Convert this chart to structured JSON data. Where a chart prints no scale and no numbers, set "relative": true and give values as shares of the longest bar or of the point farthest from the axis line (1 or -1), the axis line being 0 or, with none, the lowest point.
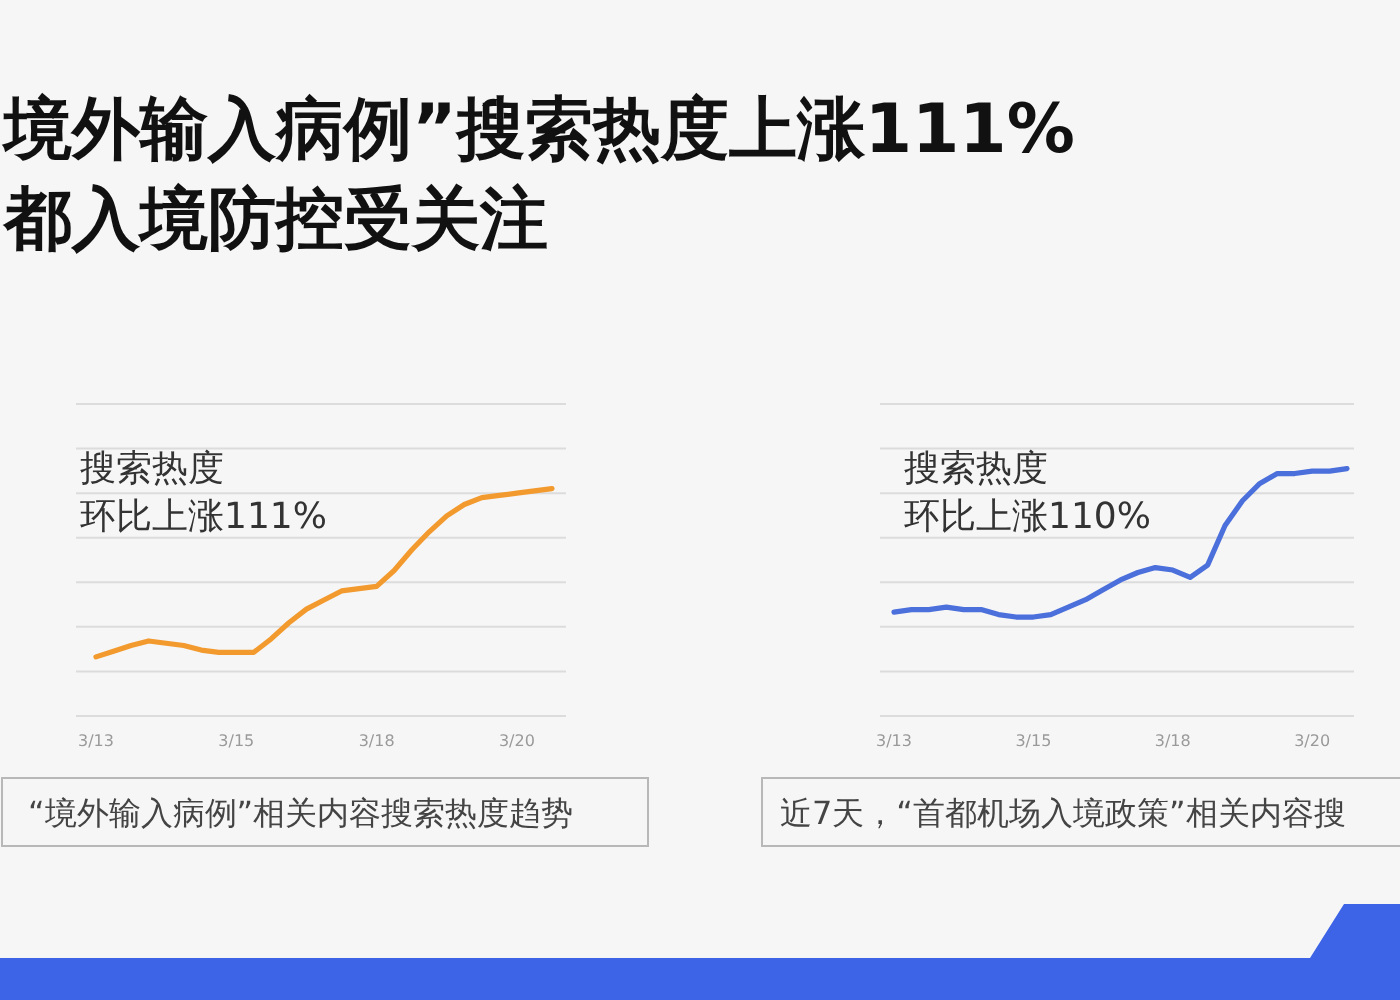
{
  "chart_data": [
    {
      "type": "line",
      "title": "境外输入病例”搜索热度上涨111%",
      "subtitle": "都入境防控受关注",
      "relative": true,
      "grid": "y",
      "categories": [
        "3/13",
        null,
        null,
        null,
        null,
        null,
        null,
        null,
        "3/15",
        null,
        null,
        null,
        null,
        null,
        null,
        null,
        "3/18",
        null,
        null,
        null,
        null,
        null,
        null,
        null,
        "3/20",
        null,
        null
      ],
      "series": [
        {
          "color": "#f39a2e",
          "values": [
            0.26,
            0.285,
            0.31,
            0.33,
            0.32,
            0.31,
            0.29,
            0.28,
            0.28,
            0.28,
            0.34,
            0.41,
            0.47,
            0.51,
            0.55,
            0.56,
            0.57,
            0.64,
            0.73,
            0.81,
            0.88,
            0.93,
            0.96,
            0.97,
            0.98,
            0.99,
            1
          ]
        }
      ],
      "annotations": [
        "搜索热度",
        "环比上涨111%",
        "“境外输入病例”相关内容搜索热度趋势"
      ]
    },
    {
      "type": "line",
      "relative": true,
      "grid": "y",
      "categories": [
        "3/13",
        null,
        null,
        null,
        null,
        null,
        null,
        null,
        "3/15",
        null,
        null,
        null,
        null,
        null,
        null,
        null,
        "3/18",
        null,
        null,
        null,
        null,
        null,
        null,
        null,
        "3/20",
        null,
        null
      ],
      "series": [
        {
          "color": "#4b6fdb",
          "values": [
            0.42,
            0.43,
            0.43,
            0.44,
            0.43,
            0.43,
            0.41,
            0.4,
            0.4,
            0.41,
            0.44,
            0.47,
            0.51,
            0.55,
            0.58,
            0.6,
            0.59,
            0.56,
            0.61,
            0.77,
            0.87,
            0.94,
            0.98,
            0.98,
            0.99,
            0.99,
            1
          ]
        }
      ],
      "annotations": [
        "搜索热度",
        "环比上涨110%",
        "近7天，“首都机场入境政策”相关内容搜"
      ]
    }
  ]
}
